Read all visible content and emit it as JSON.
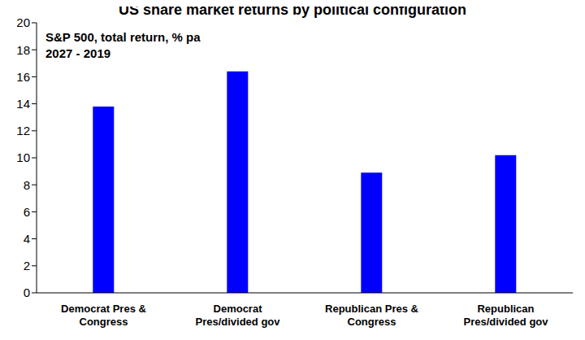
{
  "chart_data": {
    "type": "bar",
    "title": "US share market returns by political configuration",
    "annotations": [
      "S&P 500, total return, % pa",
      "2027 - 2019"
    ],
    "categories": [
      "Democrat Pres &\nCongress",
      "Democrat\nPres/divided gov",
      "Republican Pres &\nCongress",
      "Republican\nPres/divided gov"
    ],
    "values": [
      13.8,
      16.4,
      8.9,
      10.2
    ],
    "color": "#0000ff",
    "ylim": [
      0,
      20
    ],
    "yticks": [
      0,
      2,
      4,
      6,
      8,
      10,
      12,
      14,
      16,
      18,
      20
    ],
    "grid": false
  }
}
